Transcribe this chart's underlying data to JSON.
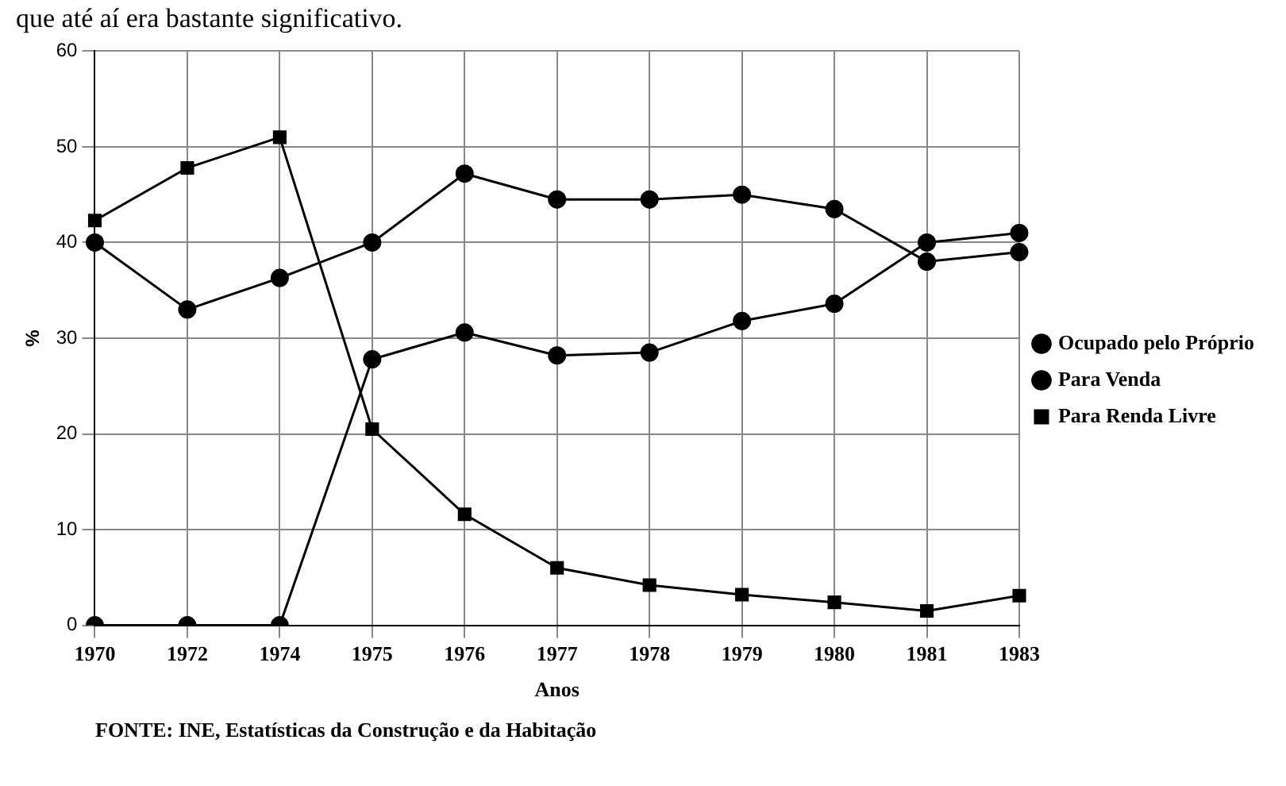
{
  "chart_data": {
    "type": "line",
    "annotations": [
      "que até aí era bastante significativo.",
      "FONTE: INE, Estatísticas da Construção e da Habitação"
    ],
    "ylabel": "%",
    "xlabel": "Anos",
    "categories": [
      "1970",
      "1972",
      "1974",
      "1975",
      "1976",
      "1977",
      "1978",
      "1979",
      "1980",
      "1981",
      "1983"
    ],
    "series": [
      {
        "name": "Ocupado pelo Próprio",
        "color": "#000000",
        "marker": "circle",
        "values": [
          40,
          33,
          36.3,
          40,
          47.2,
          44.5,
          44.5,
          45,
          43.5,
          38,
          39
        ]
      },
      {
        "name": "Para Venda",
        "color": "#000000",
        "marker": "circle",
        "values": [
          0,
          0,
          0,
          27.8,
          30.6,
          28.2,
          28.5,
          31.8,
          33.6,
          40,
          41
        ]
      },
      {
        "name": "Para Renda Livre",
        "color": "#000000",
        "marker": "square",
        "values": [
          42.3,
          47.8,
          51,
          20.5,
          11.6,
          6,
          4.2,
          3.2,
          2.4,
          1.5,
          3.1
        ]
      }
    ],
    "ylim": [
      0,
      60
    ],
    "yticks": [
      0,
      10,
      20,
      30,
      40,
      50,
      60
    ],
    "grid": true,
    "legend": "right",
    "line_style": "solid"
  }
}
